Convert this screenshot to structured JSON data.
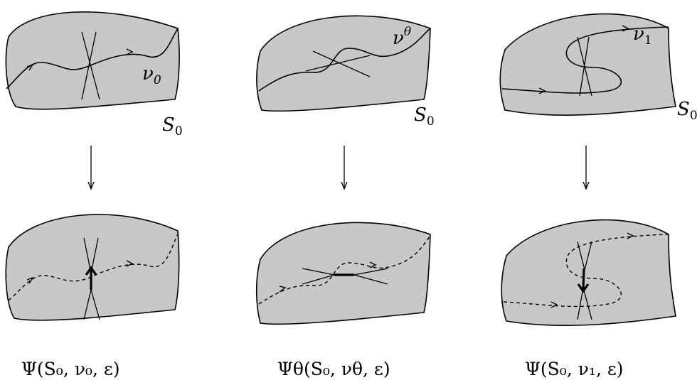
{
  "columns": [
    {
      "id": "left",
      "curve_label": "ν",
      "curve_sub": "0",
      "curve_sup": "",
      "surface_label": "S",
      "surface_sub": "0",
      "caption": "Ψ(S₀, ν₀, ε)"
    },
    {
      "id": "middle",
      "curve_label": "ν",
      "curve_sub": "",
      "curve_sup": "θ",
      "surface_label": "S",
      "surface_sub": "0",
      "caption": "Ψθ(S₀, νθ, ε)"
    },
    {
      "id": "right",
      "curve_label": "ν",
      "curve_sub": "1",
      "curve_sup": "",
      "surface_label": "S",
      "surface_sub": "0",
      "caption": "Ψ(S₀, ν₁, ε)"
    }
  ]
}
